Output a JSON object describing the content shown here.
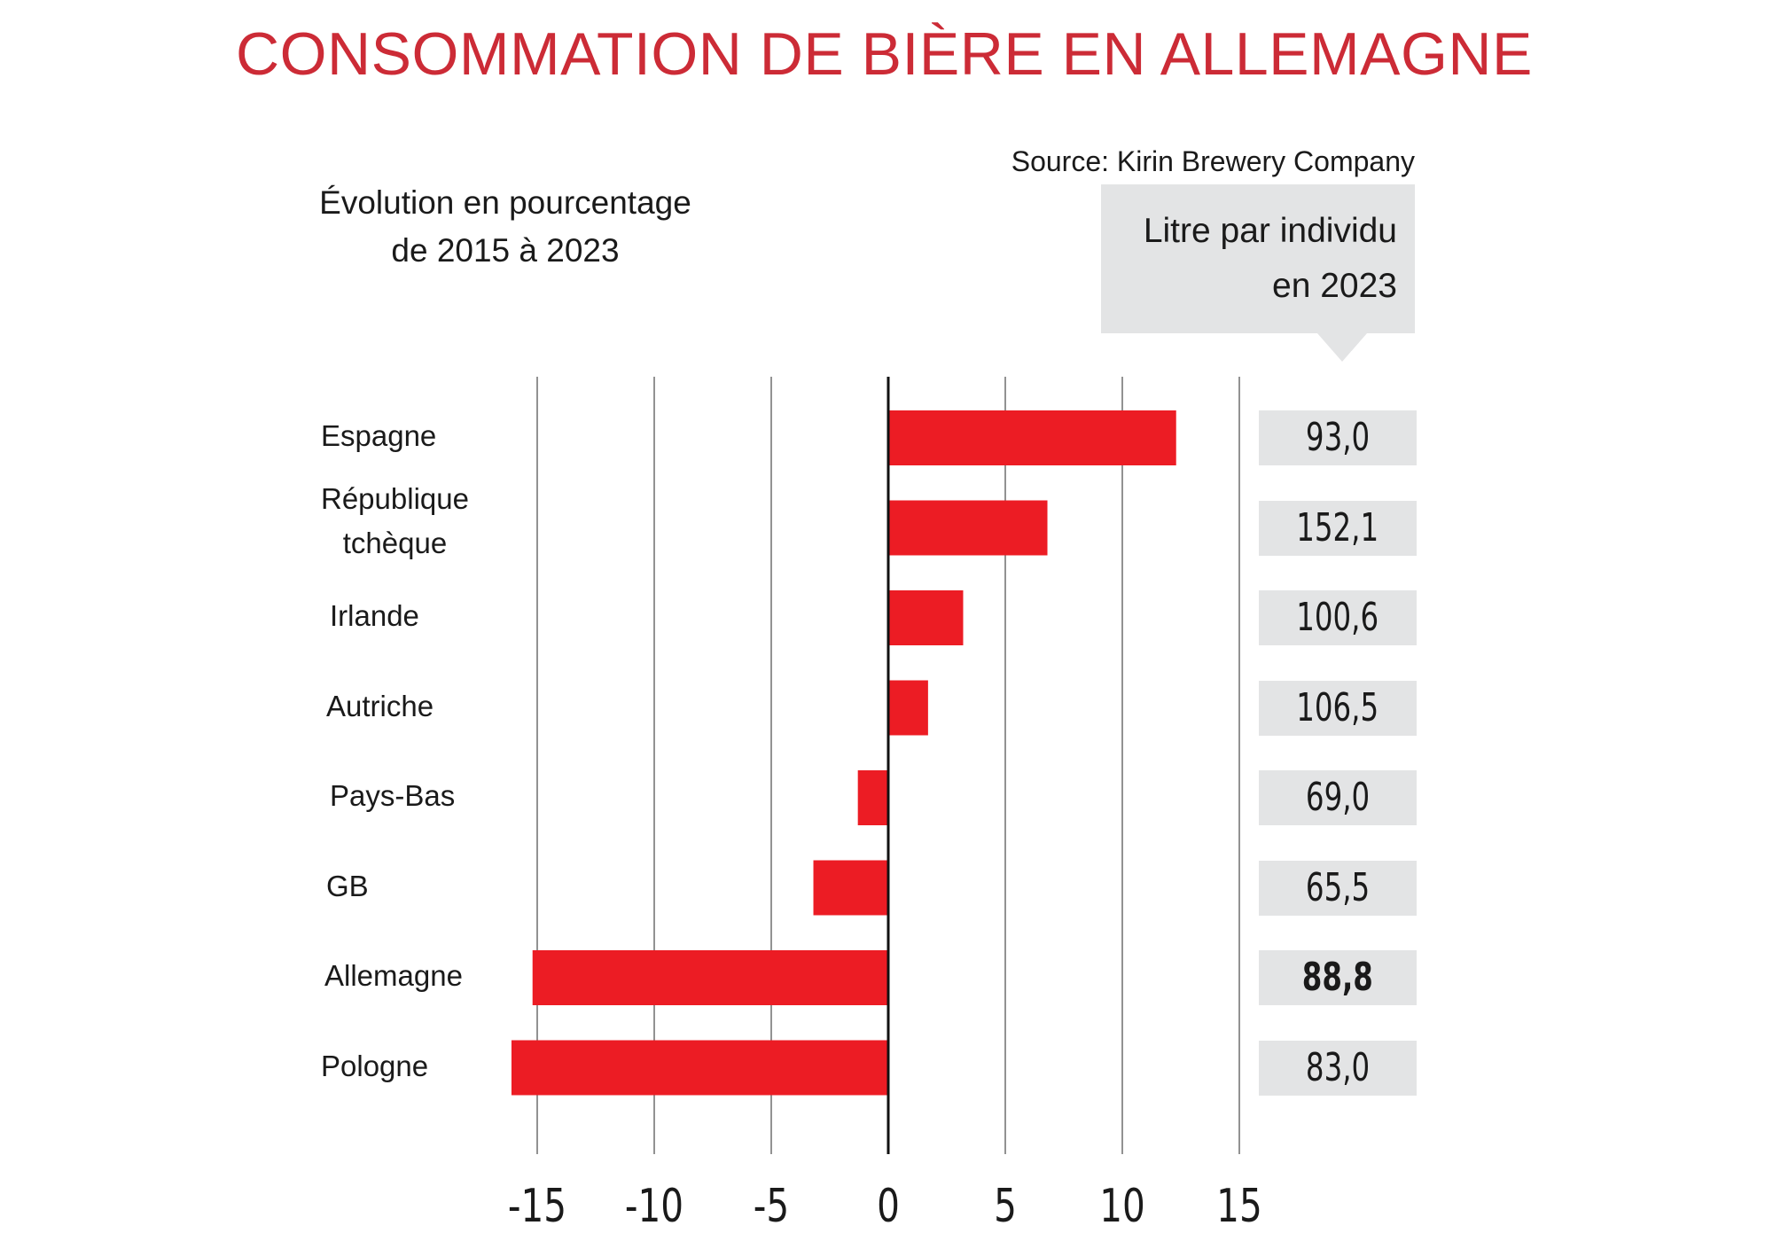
{
  "title": "CONSOMMATION DE BIÈRE EN ALLEMAGNE",
  "source": "Source: Kirin Brewery Company",
  "subtitle_line1": "Évolution en pourcentage",
  "subtitle_line2": "de 2015 à 2023",
  "unit_line1": "Litre par individu",
  "unit_line2": "en 2023",
  "colors": {
    "title": "#cc2b36",
    "bar": "#ec1c24",
    "box": "#e3e4e5",
    "grid": "#777777"
  },
  "chart_data": {
    "type": "bar",
    "orientation": "horizontal",
    "categories": [
      "Espagne",
      "République tchèque",
      "Irlande",
      "Autriche",
      "Pays-Bas",
      "GB",
      "Allemagne",
      "Pologne"
    ],
    "category_lines": [
      [
        "Espagne"
      ],
      [
        "République",
        "tchèque"
      ],
      [
        "Irlande"
      ],
      [
        "Autriche"
      ],
      [
        "Pays-Bas"
      ],
      [
        "GB"
      ],
      [
        "Allemagne"
      ],
      [
        "Pologne"
      ]
    ],
    "values": [
      12.3,
      6.8,
      3.2,
      1.7,
      -1.3,
      -3.2,
      -15.2,
      -16.1
    ],
    "litres_2023": [
      "93,0",
      "152,1",
      "100,6",
      "106,5",
      "69,0",
      "65,5",
      "88,8",
      "83,0"
    ],
    "highlight": "Allemagne",
    "xlim": [
      -15,
      15
    ],
    "xticks": [
      "-15",
      "-10",
      "-5",
      "0",
      "5",
      "10",
      "15"
    ],
    "xtick_values": [
      -15,
      -10,
      -5,
      0,
      5,
      10,
      15
    ],
    "grid": true
  }
}
